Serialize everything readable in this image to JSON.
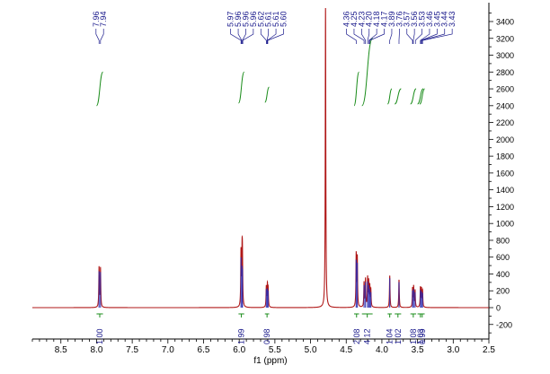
{
  "chart_data": {
    "type": "line",
    "title": "",
    "xlabel": "f1 (ppm)",
    "ylabel": "",
    "xlim": [
      8.9,
      2.5
    ],
    "ylim": [
      -330,
      3560
    ],
    "x_axis_reversed": true,
    "x_ticks": [
      "8.5",
      "8.0",
      "7.5",
      "7.0",
      "6.5",
      "6.0",
      "5.5",
      "5.0",
      "4.5",
      "4.0",
      "3.5",
      "3.0",
      "2.5"
    ],
    "y_ticks": [
      "-200",
      "0",
      "200",
      "400",
      "600",
      "800",
      "1000",
      "1200",
      "1400",
      "1600",
      "1800",
      "2000",
      "2200",
      "2400",
      "2600",
      "2800",
      "3000",
      "3200",
      "3400"
    ],
    "y_axis_position": "right",
    "grid": false,
    "legend": "none",
    "colors": {
      "spectrum": "#b01818",
      "peak_labels": "#1a1a8c",
      "integral_curve": "#1a8c1a",
      "integral_labels": "#1a1a8c"
    },
    "spectrum_peaks": [
      {
        "ppm": 7.965,
        "height": 470
      },
      {
        "ppm": 7.945,
        "height": 460
      },
      {
        "ppm": 5.975,
        "height": 650
      },
      {
        "ppm": 5.96,
        "height": 540
      },
      {
        "ppm": 5.955,
        "height": 500
      },
      {
        "ppm": 5.62,
        "height": 240
      },
      {
        "ppm": 5.605,
        "height": 250
      },
      {
        "ppm": 5.595,
        "height": 220
      },
      {
        "ppm": 4.79,
        "height": 3560
      },
      {
        "ppm": 4.36,
        "height": 620
      },
      {
        "ppm": 4.345,
        "height": 580
      },
      {
        "ppm": 4.25,
        "height": 290
      },
      {
        "ppm": 4.23,
        "height": 330
      },
      {
        "ppm": 4.2,
        "height": 340
      },
      {
        "ppm": 4.185,
        "height": 290
      },
      {
        "ppm": 4.17,
        "height": 240
      },
      {
        "ppm": 4.155,
        "height": 200
      },
      {
        "ppm": 3.89,
        "height": 380
      },
      {
        "ppm": 3.76,
        "height": 330
      },
      {
        "ppm": 3.57,
        "height": 220
      },
      {
        "ppm": 3.555,
        "height": 240
      },
      {
        "ppm": 3.535,
        "height": 200
      },
      {
        "ppm": 3.46,
        "height": 230
      },
      {
        "ppm": 3.445,
        "height": 210
      },
      {
        "ppm": 3.43,
        "height": 190
      }
    ],
    "peak_labels": [
      {
        "text": "7.96",
        "ppm": 7.965
      },
      {
        "text": "7.94",
        "ppm": 7.945
      },
      {
        "text": "5.97",
        "ppm": 5.975
      },
      {
        "text": "5.96",
        "ppm": 5.965
      },
      {
        "text": "5.96",
        "ppm": 5.955
      },
      {
        "text": "5.96",
        "ppm": 5.95
      },
      {
        "text": "5.62",
        "ppm": 5.62
      },
      {
        "text": "5.61",
        "ppm": 5.61
      },
      {
        "text": "5.61",
        "ppm": 5.605
      },
      {
        "text": "5.60",
        "ppm": 5.6
      },
      {
        "text": "4.36",
        "ppm": 4.36
      },
      {
        "text": "4.25",
        "ppm": 4.25
      },
      {
        "text": "4.23",
        "ppm": 4.23
      },
      {
        "text": "4.20",
        "ppm": 4.2
      },
      {
        "text": "4.18",
        "ppm": 4.18
      },
      {
        "text": "4.17",
        "ppm": 4.17
      },
      {
        "text": "3.89",
        "ppm": 3.89
      },
      {
        "text": "3.76",
        "ppm": 3.76
      },
      {
        "text": "3.57",
        "ppm": 3.57
      },
      {
        "text": "3.56",
        "ppm": 3.56
      },
      {
        "text": "3.53",
        "ppm": 3.53
      },
      {
        "text": "3.46",
        "ppm": 3.46
      },
      {
        "text": "3.45",
        "ppm": 3.45
      },
      {
        "text": "3.44",
        "ppm": 3.44
      },
      {
        "text": "3.43",
        "ppm": 3.43
      }
    ],
    "integrals": [
      {
        "value": "1.00",
        "from": 8.0,
        "to": 7.91,
        "curve_base": 2400,
        "curve_rise": 400
      },
      {
        "value": "1.99",
        "from": 6.01,
        "to": 5.93,
        "curve_base": 2430,
        "curve_rise": 370
      },
      {
        "value": "0.98",
        "from": 5.64,
        "to": 5.58,
        "curve_base": 2440,
        "curve_rise": 180
      },
      {
        "value": "2.08",
        "from": 4.39,
        "to": 4.32,
        "curve_base": 2400,
        "curve_rise": 400
      },
      {
        "value": "4.12",
        "from": 4.28,
        "to": 4.13,
        "curve_base": 2400,
        "curve_rise": 800
      },
      {
        "value": "1.04",
        "from": 3.92,
        "to": 3.86,
        "curve_base": 2420,
        "curve_rise": 180
      },
      {
        "value": "1.02",
        "from": 3.82,
        "to": 3.73,
        "curve_base": 2420,
        "curve_rise": 180
      },
      {
        "value": "1.08",
        "from": 3.6,
        "to": 3.52,
        "curve_base": 2420,
        "curve_rise": 180
      },
      {
        "value": "1.03",
        "from": 3.5,
        "to": 3.42,
        "curve_base": 2420,
        "curve_rise": 180
      },
      {
        "value": "0.99",
        "from": 3.47,
        "to": 3.4,
        "curve_base": 2420,
        "curve_rise": 180
      }
    ]
  }
}
